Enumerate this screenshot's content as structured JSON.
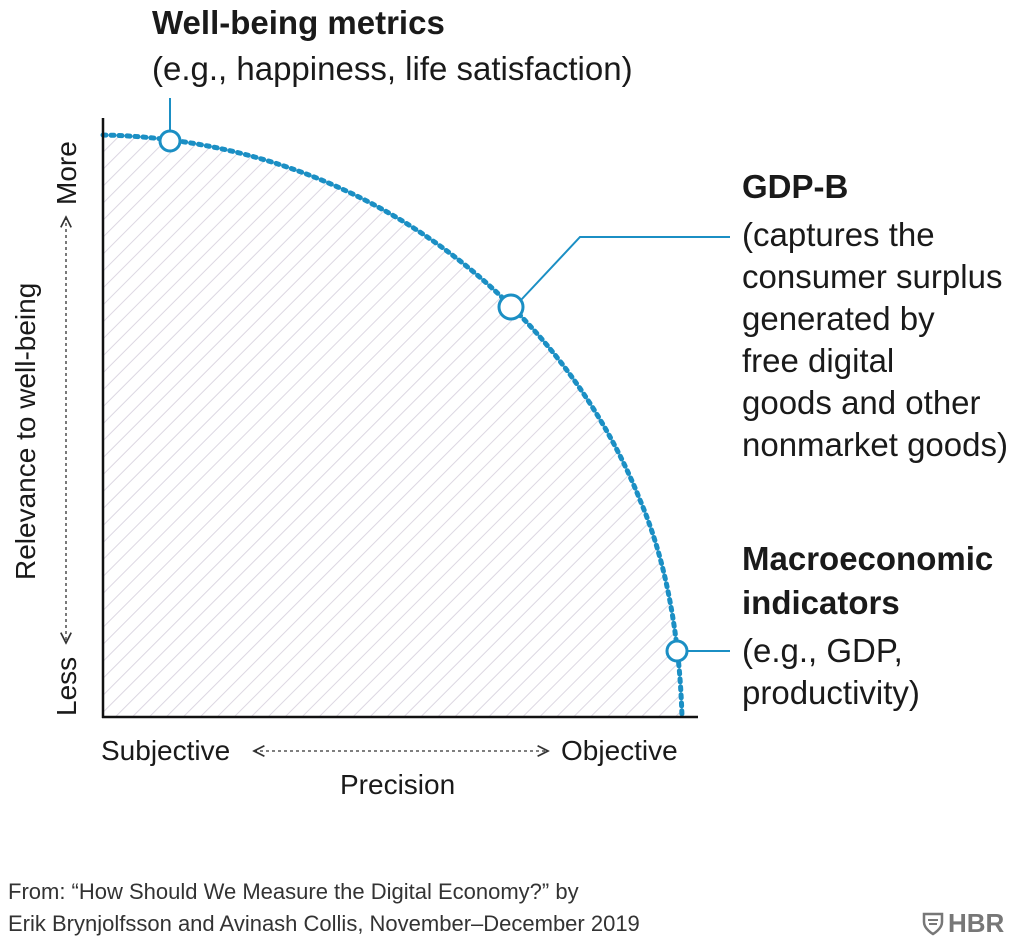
{
  "points": [
    {
      "id": "wellbeing",
      "title": "Well-being metrics",
      "lines": [
        "(e.g., happiness, life satisfaction)"
      ]
    },
    {
      "id": "gdpb",
      "title": "GDP-B",
      "lines": [
        "(captures the",
        "consumer surplus",
        "generated by",
        "free digital",
        "goods and other",
        "nonmarket goods)"
      ]
    },
    {
      "id": "macro",
      "title_lines": [
        "Macroeconomic",
        "indicators"
      ],
      "lines": [
        "(e.g., GDP,",
        "productivity)"
      ]
    }
  ],
  "axes": {
    "y_label": "Relevance to well-being",
    "y_more": "More",
    "y_less": "Less",
    "x_label": "Precision",
    "x_left": "Subjective",
    "x_right": "Objective"
  },
  "footer": {
    "line1": "From: “How Should We Measure the Digital Economy?” by",
    "line2": "Erik Brynjolfsson and Avinash Collis, November–December 2019"
  },
  "logo": {
    "text": "HBR"
  },
  "colors": {
    "accent": "#1b8fc4",
    "text": "#1a1a1a",
    "hatch": "#d8d3df"
  },
  "icons": {
    "logo_mark": "shield-icon"
  }
}
